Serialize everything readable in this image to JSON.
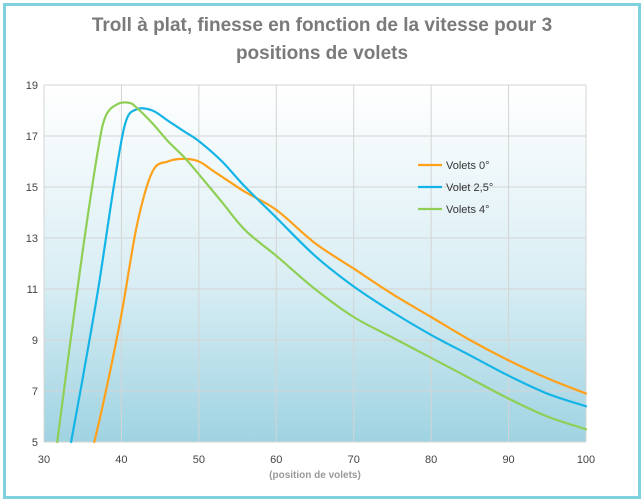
{
  "chart_data": {
    "type": "line",
    "title_line1": "Troll à plat, finesse en fonction de la vitesse pour 3",
    "title_line2": "positions de volets",
    "xlabel": "(position de volets)",
    "ylabel": "",
    "xlim": [
      30,
      100
    ],
    "ylim": [
      5,
      19
    ],
    "x_ticks": [
      "30",
      "40",
      "50",
      "60",
      "70",
      "80",
      "90",
      "100"
    ],
    "y_ticks": [
      "5",
      "7",
      "9",
      "11",
      "13",
      "15",
      "17",
      "19"
    ],
    "legend_position": "right",
    "grid": true,
    "series": [
      {
        "name": "Volets 0°",
        "color": "#ffa11a",
        "points": [
          [
            36.5,
            5
          ],
          [
            38,
            7
          ],
          [
            40,
            10
          ],
          [
            42,
            13.5
          ],
          [
            44,
            15.6
          ],
          [
            46,
            16
          ],
          [
            48,
            16.1
          ],
          [
            50,
            16
          ],
          [
            52,
            15.6
          ],
          [
            54,
            15.2
          ],
          [
            56,
            14.8
          ],
          [
            60,
            14.1
          ],
          [
            65,
            12.8
          ],
          [
            70,
            11.8
          ],
          [
            75,
            10.8
          ],
          [
            80,
            9.9
          ],
          [
            85,
            9
          ],
          [
            90,
            8.2
          ],
          [
            95,
            7.5
          ],
          [
            100,
            6.9
          ]
        ]
      },
      {
        "name": "Volet 2,5°",
        "color": "#14b4e6",
        "points": [
          [
            33.5,
            5
          ],
          [
            35,
            7.5
          ],
          [
            37,
            11
          ],
          [
            39,
            15
          ],
          [
            40.5,
            17.5
          ],
          [
            42,
            18.05
          ],
          [
            44,
            18
          ],
          [
            46,
            17.6
          ],
          [
            48,
            17.2
          ],
          [
            50,
            16.8
          ],
          [
            53,
            16
          ],
          [
            56,
            15
          ],
          [
            60,
            13.8
          ],
          [
            65,
            12.3
          ],
          [
            70,
            11.1
          ],
          [
            75,
            10.1
          ],
          [
            80,
            9.2
          ],
          [
            85,
            8.4
          ],
          [
            90,
            7.6
          ],
          [
            95,
            6.9
          ],
          [
            100,
            6.4
          ]
        ]
      },
      {
        "name": "Volets 4°",
        "color": "#8fcf55",
        "points": [
          [
            31.7,
            5
          ],
          [
            33,
            8
          ],
          [
            35,
            12.5
          ],
          [
            37,
            16.5
          ],
          [
            38,
            17.8
          ],
          [
            39.5,
            18.25
          ],
          [
            41,
            18.3
          ],
          [
            42,
            18.1
          ],
          [
            44,
            17.5
          ],
          [
            46,
            16.8
          ],
          [
            48,
            16.2
          ],
          [
            50,
            15.5
          ],
          [
            53,
            14.4
          ],
          [
            56,
            13.3
          ],
          [
            60,
            12.3
          ],
          [
            65,
            11
          ],
          [
            70,
            9.9
          ],
          [
            75,
            9.1
          ],
          [
            80,
            8.3
          ],
          [
            85,
            7.5
          ],
          [
            90,
            6.7
          ],
          [
            95,
            6
          ],
          [
            100,
            5.5
          ]
        ]
      }
    ]
  }
}
